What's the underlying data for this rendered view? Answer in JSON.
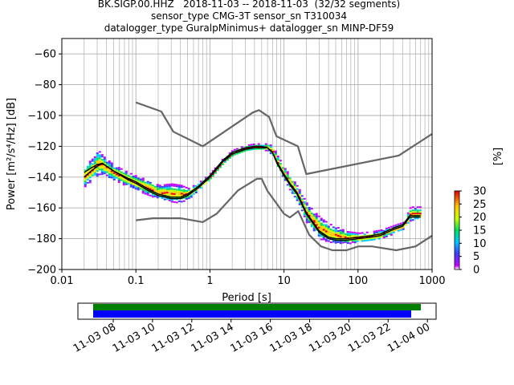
{
  "title_lines": [
    "BK.SIGP.00.HHZ   2018-11-03 -- 2018-11-03  (32/32 segments)",
    "sensor_type CMG-3T sensor_sn T310034",
    "datalogger_type GuralpMinimus+ datalogger_sn MINP-DF59"
  ],
  "colorbar": {
    "label": "[%]",
    "ticks": [
      "0",
      "5",
      "10",
      "15",
      "20",
      "25",
      "30"
    ],
    "range": [
      0,
      30
    ],
    "colormap": "pqlx"
  },
  "timeline": {
    "ticks": [
      "11-03 08",
      "11-03 10",
      "11-03 12",
      "11-03 14",
      "11-03 16",
      "11-03 18",
      "11-03 20",
      "11-03 22",
      "11-04 00"
    ],
    "data_bar_color": "#008000",
    "used_bar_color": "#0000ff"
  },
  "chart_data": {
    "type": "line",
    "xlabel": "Period [s]",
    "ylabel": "Power [m²/s⁴/Hz] [dB]",
    "xscale": "log",
    "xlim": [
      0.01,
      1000
    ],
    "ylim": [
      -200,
      -50
    ],
    "xticks": [
      0.01,
      0.1,
      1,
      10,
      100,
      1000
    ],
    "xtick_labels": [
      "0.01",
      "0.1",
      "1",
      "10",
      "100",
      "1000"
    ],
    "yticks": [
      -200,
      -180,
      -160,
      -140,
      -120,
      -100,
      -80,
      -60
    ],
    "ytick_labels": [
      "−200",
      "−180",
      "−160",
      "−140",
      "−120",
      "−100",
      "−80",
      "−60"
    ],
    "grid": true,
    "series": [
      {
        "role": "high-noise-model",
        "color": "#666666",
        "x": [
          0.1,
          0.22,
          0.32,
          0.8,
          3.8,
          4.6,
          6.3,
          7.9,
          15.4,
          20,
          354.8,
          1000
        ],
        "y": [
          -91.5,
          -97.4,
          -110.5,
          -120,
          -98,
          -96.5,
          -101,
          -113.5,
          -120,
          -138,
          -126,
          -112
        ]
      },
      {
        "role": "low-noise-model",
        "color": "#666666",
        "x": [
          0.1,
          0.17,
          0.4,
          0.8,
          1.24,
          2.4,
          4.3,
          5,
          6,
          10,
          12,
          15.6,
          21.9,
          31.6,
          45,
          70,
          101,
          154,
          328,
          600,
          1000
        ],
        "y": [
          -168,
          -166.7,
          -166.7,
          -169.2,
          -163.7,
          -148.6,
          -141.1,
          -141.1,
          -149,
          -163.8,
          -166.2,
          -162.1,
          -177.5,
          -185,
          -187.5,
          -187.5,
          -185,
          -185,
          -187.5,
          -185,
          -178
        ]
      },
      {
        "role": "mean",
        "color": "#000000",
        "x": [
          0.02,
          0.025,
          0.03,
          0.035,
          0.05,
          0.08,
          0.1,
          0.15,
          0.2,
          0.3,
          0.4,
          0.5,
          0.7,
          1,
          1.5,
          2,
          3,
          4,
          5,
          6,
          7,
          8,
          10,
          12,
          15,
          20,
          30,
          40,
          50,
          70,
          100,
          150,
          200,
          300,
          400,
          500,
          700
        ],
        "y": [
          -140,
          -136,
          -133,
          -131,
          -136,
          -141,
          -143,
          -148,
          -151,
          -153,
          -153,
          -151,
          -146,
          -139,
          -129,
          -124,
          -121,
          -120,
          -120,
          -121,
          -124,
          -130,
          -138,
          -144,
          -150,
          -163,
          -175,
          -179,
          -180,
          -180,
          -179,
          -178,
          -177,
          -173,
          -171,
          -165,
          -165
        ]
      },
      {
        "role": "mode",
        "color": "#000000",
        "x": [
          0.02,
          0.025,
          0.03,
          0.035,
          0.05,
          0.08,
          0.1,
          0.15,
          0.2,
          0.3,
          0.4,
          0.5,
          0.7,
          1,
          1.5,
          2,
          3,
          4,
          5,
          6,
          7,
          8,
          10,
          12,
          15,
          20,
          30,
          40,
          50,
          70,
          100,
          150,
          200,
          300,
          400,
          500,
          700
        ],
        "y": [
          -137,
          -134,
          -132,
          -131,
          -136,
          -142,
          -144,
          -149,
          -152,
          -154,
          -154,
          -152,
          -147,
          -140,
          -130,
          -125,
          -122,
          -121,
          -121,
          -121,
          -124,
          -131,
          -139,
          -145,
          -151,
          -164,
          -176,
          -180,
          -181,
          -181,
          -180,
          -179,
          -178,
          -174,
          -172,
          -166,
          -166
        ]
      }
    ],
    "psd_band": {
      "x": [
        0.02,
        0.025,
        0.03,
        0.035,
        0.05,
        0.08,
        0.1,
        0.15,
        0.2,
        0.3,
        0.4,
        0.5,
        0.7,
        1,
        1.5,
        2,
        3,
        4,
        5,
        6,
        7,
        8,
        10,
        12,
        15,
        20,
        30,
        40,
        50,
        70,
        100,
        150,
        200,
        300,
        400,
        500,
        700
      ],
      "low": [
        -146,
        -142,
        -139,
        -138,
        -142,
        -146,
        -148,
        -152,
        -154,
        -156,
        -156,
        -154,
        -148,
        -141,
        -131,
        -126,
        -123,
        -122,
        -122,
        -123,
        -127,
        -134,
        -142,
        -149,
        -156,
        -170,
        -180,
        -182,
        -183,
        -183,
        -182,
        -181,
        -180,
        -176,
        -174,
        -168,
        -168
      ],
      "high": [
        -132,
        -128,
        -122,
        -126,
        -132,
        -137,
        -139,
        -142,
        -145,
        -144,
        -145,
        -147,
        -143,
        -137,
        -127,
        -122,
        -119,
        -118,
        -118,
        -118,
        -120,
        -126,
        -134,
        -139,
        -146,
        -157,
        -166,
        -170,
        -172,
        -175,
        -176,
        -175,
        -174,
        -171,
        -169,
        -159,
        -159
      ]
    }
  }
}
